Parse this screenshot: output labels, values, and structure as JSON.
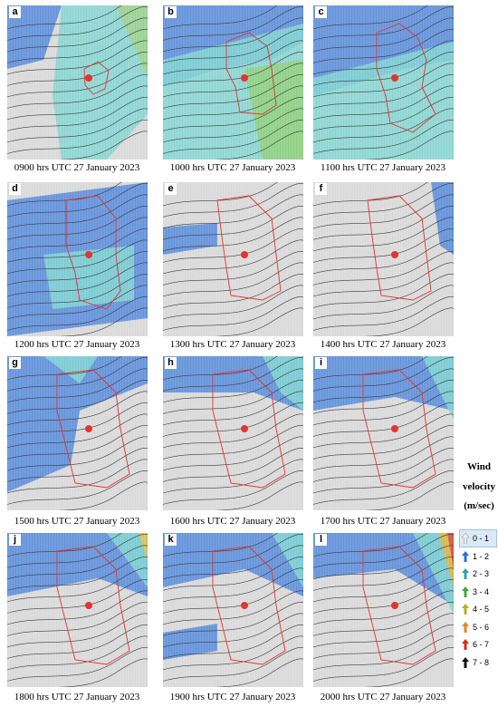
{
  "panels": [
    {
      "letter": "a",
      "caption": "0900 hrs UTC 27 January 2023"
    },
    {
      "letter": "b",
      "caption": "1000 hrs UTC 27 January 2023"
    },
    {
      "letter": "c",
      "caption": "1100 hrs UTC 27 January 2023"
    },
    {
      "letter": "d",
      "caption": "1200 hrs UTC 27 January 2023"
    },
    {
      "letter": "e",
      "caption": "1300 hrs UTC 27 January 2023"
    },
    {
      "letter": "f",
      "caption": "1400 hrs UTC 27 January 2023"
    },
    {
      "letter": "g",
      "caption": "1500 hrs UTC 27 January 2023"
    },
    {
      "letter": "h",
      "caption": "1600 hrs UTC 27 January 2023"
    },
    {
      "letter": "i",
      "caption": "1700 hrs UTC 27 January 2023"
    },
    {
      "letter": "j",
      "caption": "1800 hrs UTC 27 January 2023"
    },
    {
      "letter": "k",
      "caption": "1900 hrs UTC 27 January 2023"
    },
    {
      "letter": "l",
      "caption": "2000 hrs UTC 27 January 2023"
    }
  ],
  "legend": {
    "title_line1": "Wind",
    "title_line2": "velocity",
    "title_line3": "(m/sec)",
    "items": [
      {
        "label": "0 - 1",
        "color": "#f2f2f2",
        "selected": true
      },
      {
        "label": "1 - 2",
        "color": "#2a6fd6"
      },
      {
        "label": "2 - 3",
        "color": "#28a7a0"
      },
      {
        "label": "3 - 4",
        "color": "#3caa3c"
      },
      {
        "label": "4 - 5",
        "color": "#b8b020"
      },
      {
        "label": "5 - 6",
        "color": "#e08a1a"
      },
      {
        "label": "6 - 7",
        "color": "#d62a1a"
      },
      {
        "label": "7 - 8",
        "color": "#111111"
      }
    ]
  }
}
